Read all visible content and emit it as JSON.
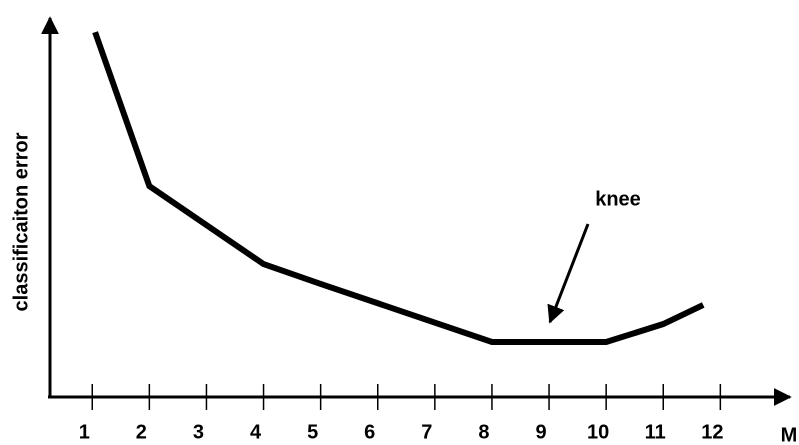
{
  "chart_data": {
    "type": "line",
    "y_label": "classificaiton error",
    "x_label": "M",
    "annotation": "knee",
    "x": [
      1.05,
      2,
      4,
      5,
      8,
      10,
      11,
      11.7
    ],
    "series": [
      {
        "color": "#000000",
        "values": [
          95.5,
          55.2,
          34.8,
          29.6,
          14.4,
          14.4,
          19.1,
          24.1
        ]
      }
    ],
    "xlim": [
      0.26,
      13.22
    ],
    "ylim": [
      0,
      100
    ],
    "xticks": [
      1,
      2,
      3,
      4,
      5,
      6,
      7,
      8,
      9,
      10,
      11,
      12
    ]
  }
}
